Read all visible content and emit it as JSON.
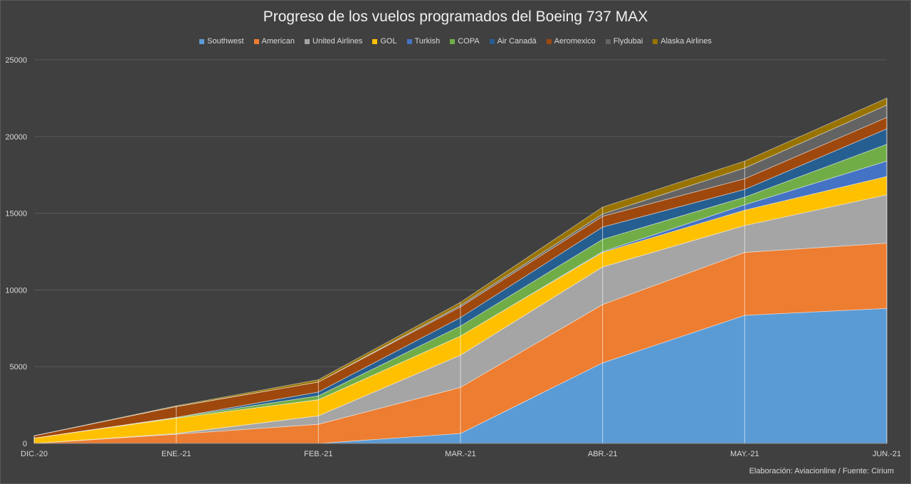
{
  "chart_data": {
    "type": "area",
    "stacked": true,
    "title": "Progreso de los vuelos programados del Boeing 737 MAX",
    "categories": [
      "DIC.-20",
      "ENE.-21",
      "FEB.-21",
      "MAR.-21",
      "ABR.-21",
      "MAY.-21",
      "JUN.-21"
    ],
    "ylim": [
      0,
      25000
    ],
    "yticks": [
      0,
      5000,
      10000,
      15000,
      20000,
      25000
    ],
    "grid": true,
    "legend_position": "top",
    "series": [
      {
        "name": "Southwest",
        "color": "#5b9bd5",
        "values": [
          0,
          0,
          0,
          650,
          5250,
          8350,
          8800
        ]
      },
      {
        "name": "American",
        "color": "#ed7d31",
        "values": [
          0,
          600,
          1250,
          3000,
          3800,
          4100,
          4250
        ]
      },
      {
        "name": "United Airlines",
        "color": "#a5a5a5",
        "values": [
          0,
          50,
          550,
          2100,
          2450,
          1750,
          3150
        ]
      },
      {
        "name": "GOL",
        "color": "#ffc000",
        "values": [
          350,
          1000,
          1050,
          1250,
          950,
          1000,
          1200
        ]
      },
      {
        "name": "Turkish",
        "color": "#4472c4",
        "values": [
          0,
          0,
          0,
          0,
          50,
          350,
          1000
        ]
      },
      {
        "name": "COPA",
        "color": "#70ad47",
        "values": [
          0,
          50,
          250,
          650,
          800,
          500,
          1100
        ]
      },
      {
        "name": "Air Canadá",
        "color": "#255e91",
        "values": [
          0,
          0,
          250,
          550,
          800,
          500,
          1000
        ]
      },
      {
        "name": "Aeromexico",
        "color": "#9e480e",
        "values": [
          150,
          700,
          650,
          700,
          700,
          700,
          750
        ]
      },
      {
        "name": "Flydubai",
        "color": "#636363",
        "values": [
          0,
          0,
          0,
          100,
          150,
          700,
          800
        ]
      },
      {
        "name": "Alaska Airlines",
        "color": "#997300",
        "values": [
          0,
          50,
          150,
          200,
          450,
          450,
          450
        ]
      }
    ]
  },
  "footer": {
    "source": "Elaboración: Aviacionline /  Fuente: Cirium"
  }
}
